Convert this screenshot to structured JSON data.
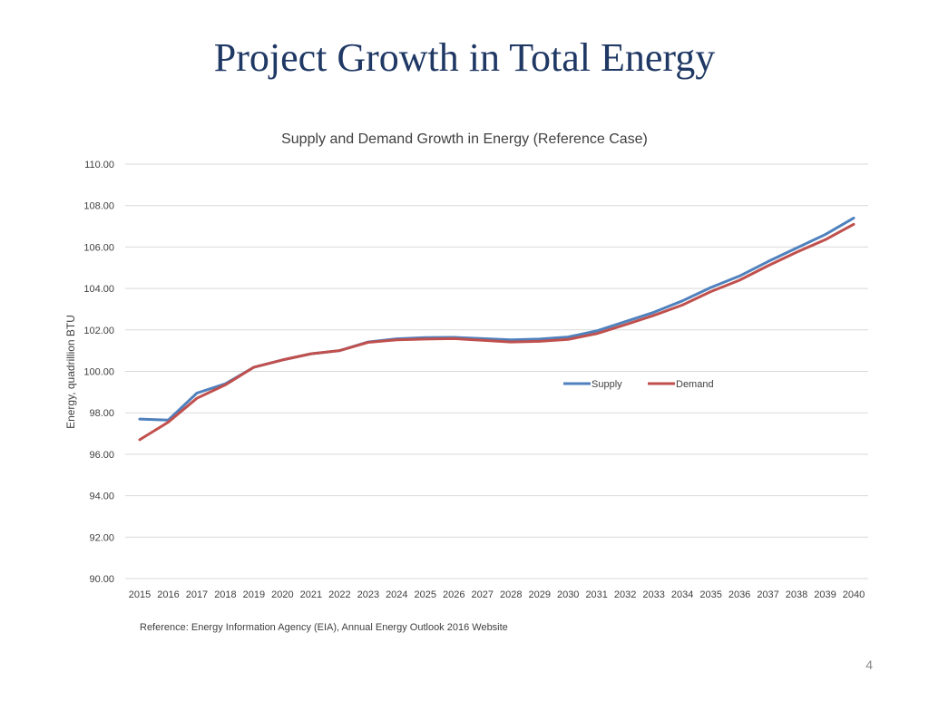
{
  "slide": {
    "title": "Project Growth in Total Energy",
    "reference": "Reference:  Energy Information Agency (EIA), Annual Energy Outlook 2016 Website",
    "page_number": "4"
  },
  "colors": {
    "title": "#1f3864",
    "supply": "#4f81bd",
    "demand": "#c0504d",
    "grid": "#d9d9d9",
    "axis_text": "#404040"
  },
  "chart_data": {
    "type": "line",
    "title": "Supply and Demand Growth in Energy (Reference Case)",
    "xlabel": "",
    "ylabel": "Energy, quadrillion BTU",
    "ylim": [
      90,
      110
    ],
    "yticks": [
      "90.00",
      "92.00",
      "94.00",
      "96.00",
      "98.00",
      "100.00",
      "102.00",
      "104.00",
      "106.00",
      "108.00",
      "110.00"
    ],
    "grid": true,
    "legend_position": "middle-right",
    "categories": [
      "2015",
      "2016",
      "2017",
      "2018",
      "2019",
      "2020",
      "2021",
      "2022",
      "2023",
      "2024",
      "2025",
      "2026",
      "2027",
      "2028",
      "2029",
      "2030",
      "2031",
      "2032",
      "2033",
      "2034",
      "2035",
      "2036",
      "2037",
      "2038",
      "2039",
      "2040"
    ],
    "series": [
      {
        "name": "Supply",
        "color": "#4f81bd",
        "values": [
          97.7,
          97.65,
          98.95,
          99.4,
          100.2,
          100.55,
          100.85,
          101.0,
          101.42,
          101.57,
          101.63,
          101.64,
          101.58,
          101.52,
          101.56,
          101.66,
          101.95,
          102.4,
          102.85,
          103.4,
          104.05,
          104.6,
          105.3,
          105.95,
          106.6,
          107.4
        ]
      },
      {
        "name": "Demand",
        "color": "#c0504d",
        "values": [
          96.7,
          97.55,
          98.7,
          99.35,
          100.2,
          100.55,
          100.85,
          101.0,
          101.4,
          101.52,
          101.56,
          101.58,
          101.5,
          101.42,
          101.45,
          101.54,
          101.82,
          102.25,
          102.7,
          103.2,
          103.85,
          104.4,
          105.1,
          105.75,
          106.35,
          107.1
        ]
      }
    ]
  }
}
